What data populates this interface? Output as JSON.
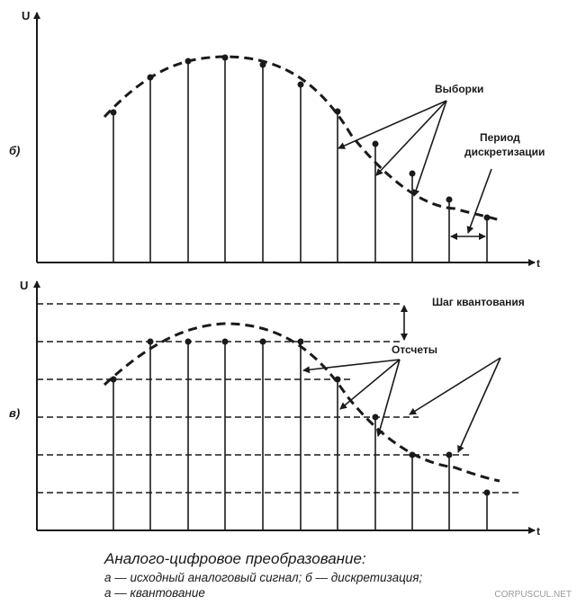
{
  "diagram": {
    "axis_u": "U",
    "axis_t": "t",
    "panel_b_label": "б)",
    "panel_v_label": "в)",
    "samples_label": "Выборки",
    "period_label_1": "Период",
    "period_label_2": "дискретизации",
    "step_label": "Шаг квантования",
    "counts_label": "Отсчеты"
  },
  "caption": {
    "title": "Аналого-цифровое преобразование:",
    "line1": "а — исходный аналоговый сигнал; б — дискретизация;",
    "line2": "а — квантование"
  },
  "watermark": "CORPUSCUL.NET"
}
